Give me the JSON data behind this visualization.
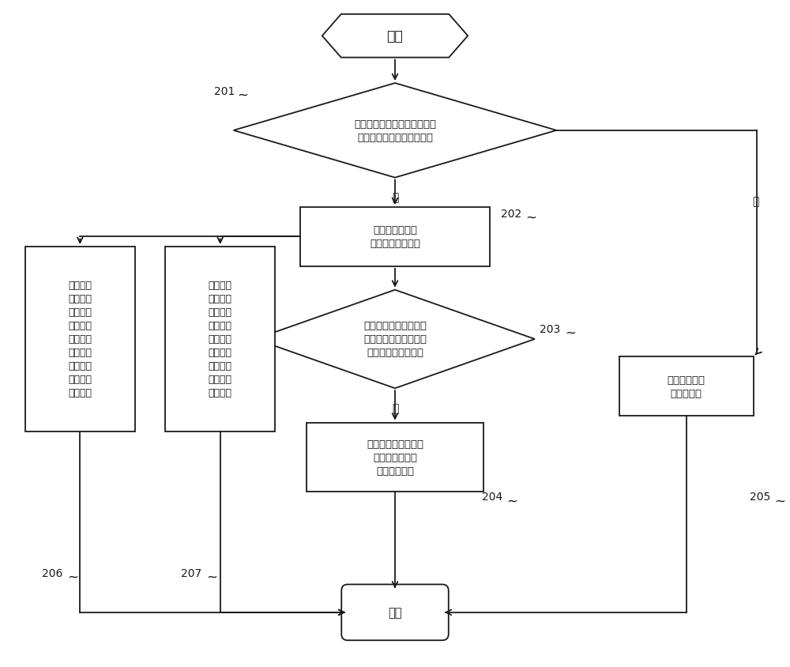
{
  "fig_width": 10.0,
  "fig_height": 8.45,
  "dpi": 100,
  "bg_color": "#ffffff",
  "line_color": "#1a1a1a",
  "text_color": "#1a1a1a",
  "font_size": 9.5,
  "lw": 1.3,
  "start_text": "开始",
  "end_text": "结束",
  "d201_text": "检测到手电筒开启指令时，判\n断所述第一闪光灯是否损坏",
  "b202_text": "将所述第一闪光\n灯作为手电筒打开",
  "d203_text": "每隔预设时间间隔，检\n测所述第一闪光灯的温\n度是否超过预设阈值",
  "b204_text": "按照第一预设步长减\n小所述第一闪光\n灯的驱动电流",
  "b205_text": "执行预先设置\n的提示操作",
  "b206_text": "检测到用\n户的第一\n预设操作\n时，按照\n第二预设\n步长增大\n所述第一\n闪光灯的\n驱动电流",
  "b207_text": "检测到用\n户的第二\n预设操作\n时，按照\n第三预设\n步长减小\n所述第一\n闪光灯的\n驱动电流",
  "label_201": "201",
  "label_202": "202",
  "label_203": "203",
  "label_204": "204",
  "label_205": "205",
  "label_206": "206",
  "label_207": "207",
  "label_no1": "否",
  "label_yes1": "是",
  "label_yes2": "是"
}
